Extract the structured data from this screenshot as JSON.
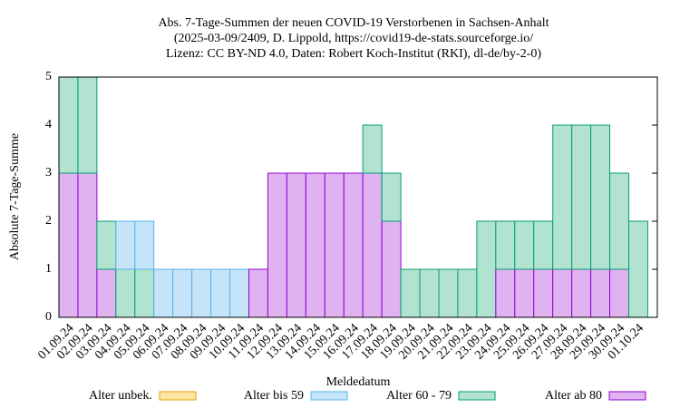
{
  "chart_data": {
    "type": "bar",
    "stacked": true,
    "title": [
      "Abs. 7-Tage-Summen der neuen COVID-19 Verstorbenen in Sachsen-Anhalt",
      "(2025-03-09/2409, D. Lippold, https://covid19-de-stats.sourceforge.io/",
      "Lizenz: CC BY-ND 4.0, Daten: Robert Koch-Institut (RKI), dl-de/by-2-0)"
    ],
    "x_label": "Meldedatum",
    "y_label": "Absolute 7-Tage-Summe",
    "categories": [
      "01.09.24",
      "02.09.24",
      "03.09.24",
      "04.09.24",
      "05.09.24",
      "06.09.24",
      "07.09.24",
      "08.09.24",
      "09.09.24",
      "10.09.24",
      "11.09.24",
      "12.09.24",
      "13.09.24",
      "14.09.24",
      "15.09.24",
      "16.09.24",
      "17.09.24",
      "18.09.24",
      "19.09.24",
      "20.09.24",
      "21.09.24",
      "22.09.24",
      "23.09.24",
      "24.09.24",
      "25.09.24",
      "26.09.24",
      "27.09.24",
      "28.09.24",
      "29.09.24",
      "30.09.24",
      "01.10.24"
    ],
    "series": [
      {
        "name": "Alter unbek.",
        "color": "#fde6a3",
        "edge": "#e69f00",
        "values": [
          0,
          0,
          0,
          0,
          0,
          0,
          0,
          0,
          0,
          0,
          0,
          0,
          0,
          0,
          0,
          0,
          0,
          0,
          0,
          0,
          0,
          0,
          0,
          0,
          0,
          0,
          0,
          0,
          0,
          0,
          0
        ]
      },
      {
        "name": "Alter bis 59",
        "color": "#c6e4f7",
        "edge": "#56b4e9",
        "values": [
          0,
          0,
          0,
          1,
          1,
          1,
          1,
          1,
          1,
          1,
          0,
          0,
          0,
          0,
          0,
          0,
          0,
          0,
          0,
          0,
          0,
          0,
          0,
          0,
          0,
          0,
          0,
          0,
          0,
          0,
          0
        ]
      },
      {
        "name": "Alter 60 - 79",
        "color": "#b2e3d1",
        "edge": "#009e73",
        "values": [
          2,
          2,
          1,
          1,
          1,
          0,
          0,
          0,
          0,
          0,
          0,
          0,
          0,
          0,
          0,
          0,
          1,
          1,
          1,
          1,
          1,
          1,
          2,
          1,
          1,
          1,
          3,
          3,
          3,
          2,
          2
        ]
      },
      {
        "name": "Alter ab 80",
        "color": "#dfb2f0",
        "edge": "#9400d3",
        "values": [
          3,
          3,
          1,
          0,
          0,
          0,
          0,
          0,
          0,
          0,
          1,
          3,
          3,
          3,
          3,
          3,
          3,
          2,
          0,
          0,
          0,
          0,
          0,
          1,
          1,
          1,
          1,
          1,
          1,
          1,
          0
        ]
      }
    ],
    "ylim": [
      0,
      5
    ],
    "yticks": [
      0,
      1,
      2,
      3,
      4,
      5
    ],
    "grid": false
  }
}
